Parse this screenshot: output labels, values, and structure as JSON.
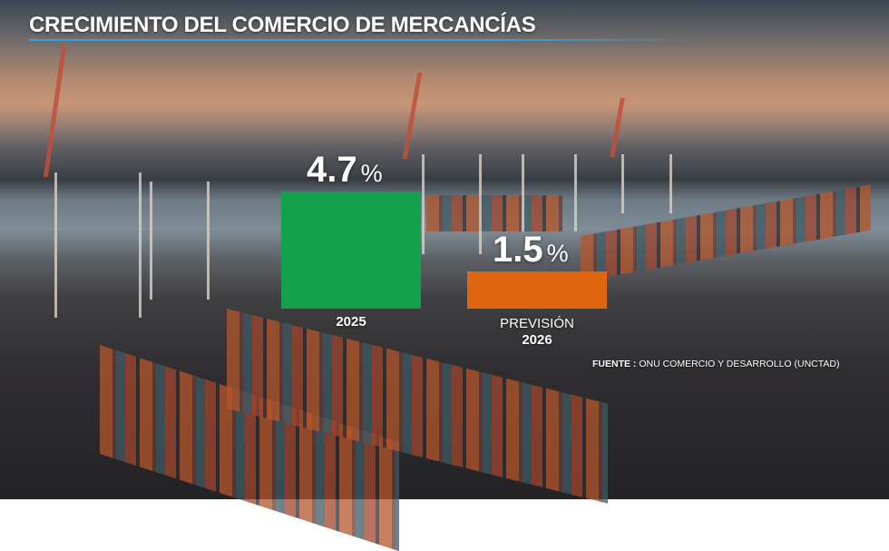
{
  "title": "CRECIMIENTO DEL COMERCIO DE MERCANCÍAS",
  "source": {
    "label": "FUENTE :",
    "text": "ONU COMERCIO Y DESARROLLO (UNCTAD)"
  },
  "chart_data": {
    "type": "bar",
    "title": "CRECIMIENTO DEL COMERCIO DE MERCANCÍAS",
    "categories": [
      {
        "line1": "",
        "line2": "2025"
      },
      {
        "line1": "PREVISIÓN",
        "line2": "2026"
      }
    ],
    "values": [
      4.7,
      1.5
    ],
    "value_labels": [
      "4.7",
      "1.5"
    ],
    "unit": "%",
    "colors": [
      "#12a04c",
      "#e0650f"
    ],
    "ylim": [
      0,
      4.7
    ],
    "grid": false
  }
}
